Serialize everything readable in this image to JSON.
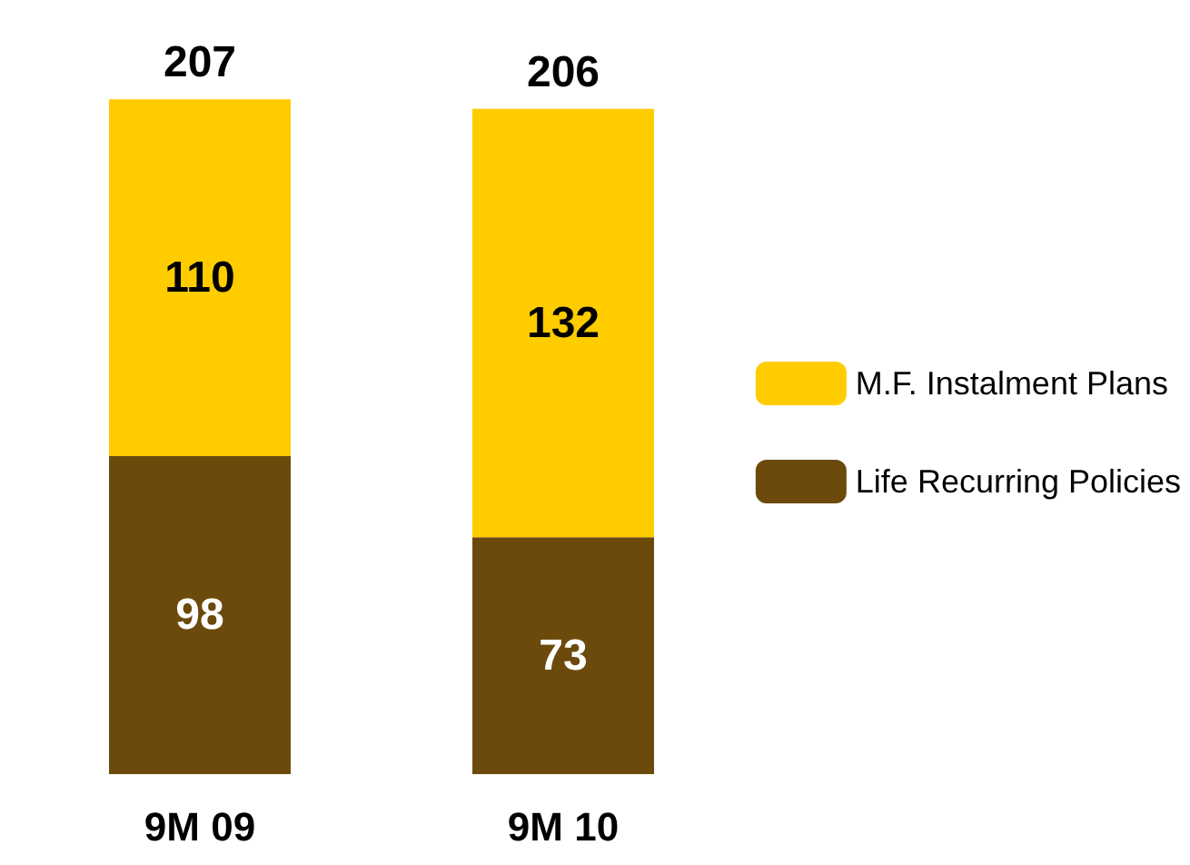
{
  "chart_data": {
    "type": "bar",
    "stacked": true,
    "categories": [
      "9M 09",
      "9M 10"
    ],
    "series": [
      {
        "name": "Life Recurring Policies",
        "color": "#6b4a0c",
        "values": [
          98,
          73
        ]
      },
      {
        "name": "M.F. Instalment Plans",
        "color": "#ffcc00",
        "values": [
          110,
          132
        ]
      }
    ],
    "totals": [
      "207",
      "206"
    ],
    "data_labels": true,
    "legend": "right"
  }
}
